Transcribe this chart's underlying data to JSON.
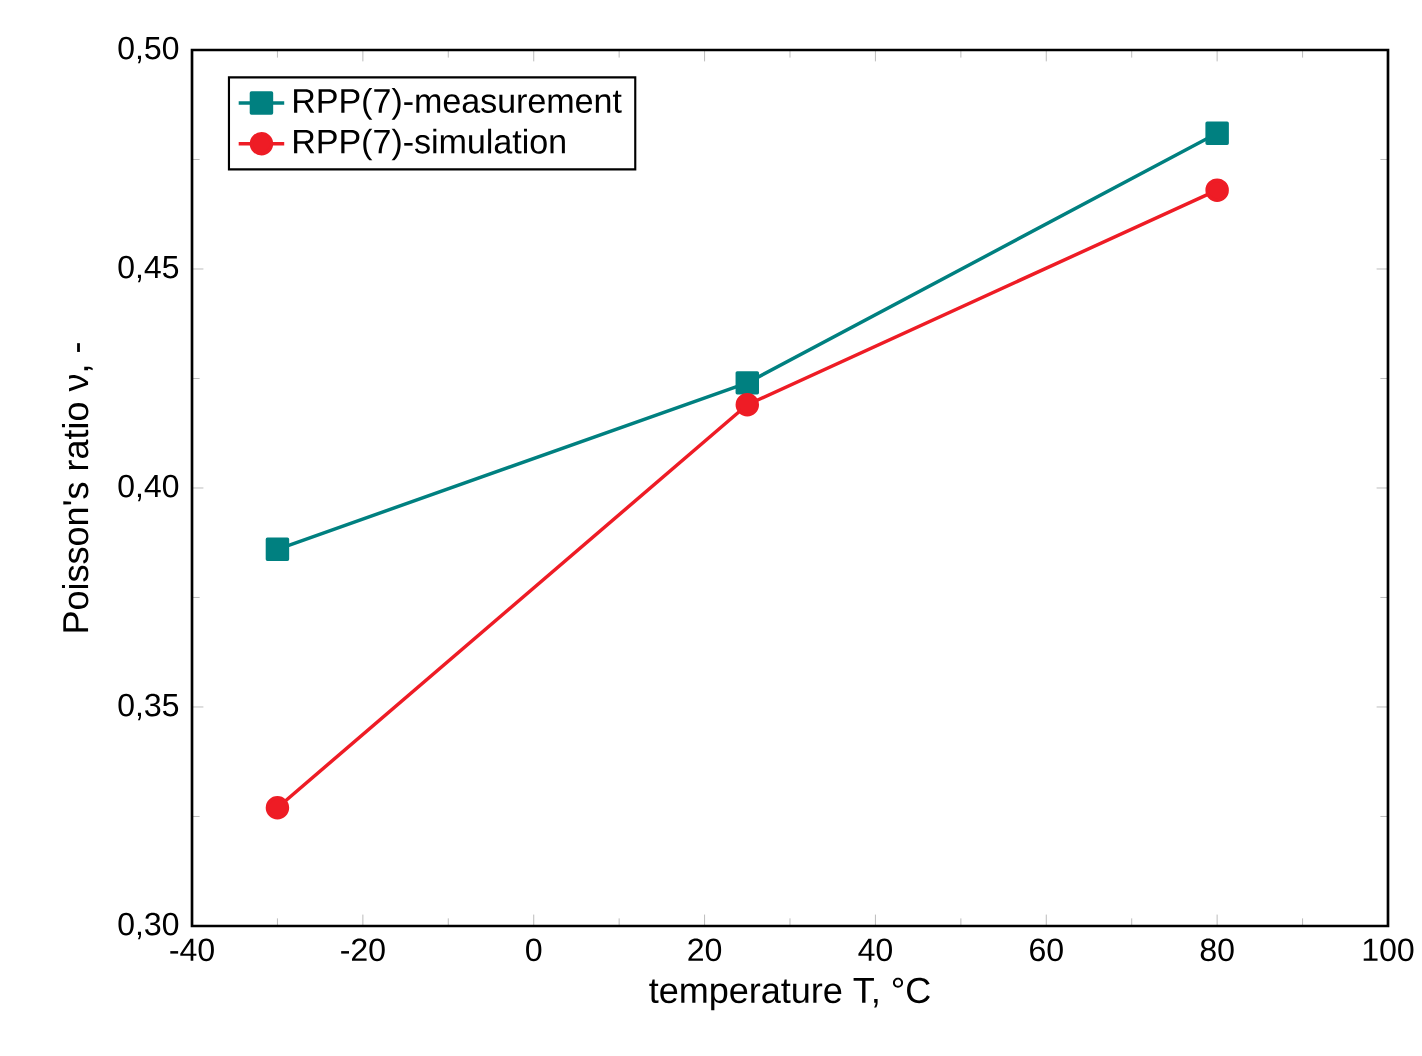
{
  "chart_data": {
    "type": "line",
    "xlabel": "temperature    T,    °C",
    "ylabel": "Poisson's ratio    ν,    -",
    "x": [
      -30,
      25,
      80
    ],
    "series": [
      {
        "name": "RPP(7)-measurement",
        "color": "#008080",
        "marker": "square",
        "values": [
          0.386,
          0.424,
          0.481
        ]
      },
      {
        "name": "RPP(7)-simulation",
        "color": "#ee1c25",
        "marker": "circle",
        "values": [
          0.327,
          0.419,
          0.468
        ]
      }
    ],
    "xlim": [
      -40,
      100
    ],
    "xticks": [
      -40,
      -20,
      0,
      20,
      40,
      60,
      80,
      100
    ],
    "ylim": [
      0.3,
      0.5
    ],
    "yticks": [
      {
        "value": 0.3,
        "label": "0,30"
      },
      {
        "value": 0.35,
        "label": "0,35"
      },
      {
        "value": 0.4,
        "label": "0,40"
      },
      {
        "value": 0.45,
        "label": "0,45"
      },
      {
        "value": 0.5,
        "label": "0,50"
      }
    ],
    "grid": false,
    "legend": "top left",
    "line_style": "solid"
  }
}
